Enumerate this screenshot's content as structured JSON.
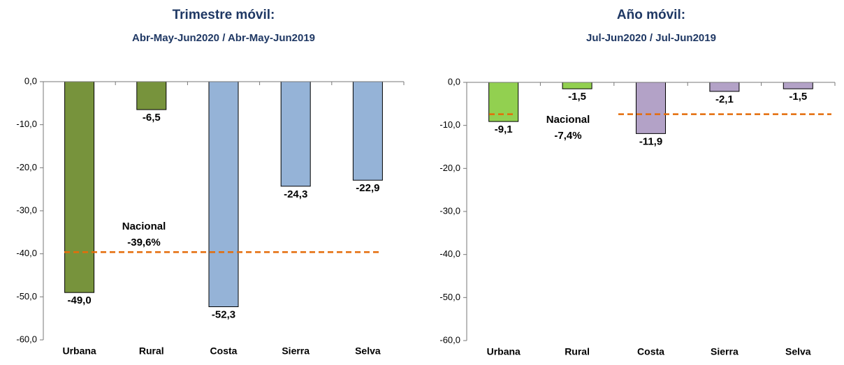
{
  "chart_data": [
    {
      "type": "bar",
      "title": "Trimestre móvil:",
      "subtitle": "Abr-May-Jun2020 /  Abr-May-Jun2019",
      "categories": [
        "Urbana",
        "Rural",
        "Costa",
        "Sierra",
        "Selva"
      ],
      "values": [
        -49.0,
        -6.5,
        -52.3,
        -24.3,
        -22.9
      ],
      "value_labels": [
        "-49,0",
        "-6,5",
        "-52,3",
        "-24,3",
        "-22,9"
      ],
      "colors": [
        "#77933c",
        "#77933c",
        "#95b3d7",
        "#95b3d7",
        "#95b3d7"
      ],
      "ylim": [
        0,
        -60
      ],
      "yticks": [
        {
          "value": 0,
          "label": "0,0"
        },
        {
          "value": -10,
          "label": "-10,0"
        },
        {
          "value": -20,
          "label": "-20,0"
        },
        {
          "value": -30,
          "label": "-30,0"
        },
        {
          "value": -40,
          "label": "-40,0"
        },
        {
          "value": -50,
          "label": "-50,0"
        },
        {
          "value": -60,
          "label": "-60,0"
        }
      ],
      "reference_line": {
        "name": "Nacional",
        "value": -39.6,
        "label": "-39,6%",
        "color": "#e46c0a"
      }
    },
    {
      "type": "bar",
      "title": "Año móvil:",
      "subtitle": "Jul-Jun2020 / Jul-Jun2019",
      "categories": [
        "Urbana",
        "Rural",
        "Costa",
        "Sierra",
        "Selva"
      ],
      "values": [
        -9.1,
        -1.5,
        -11.9,
        -2.1,
        -1.5
      ],
      "value_labels": [
        "-9,1",
        "-1,5",
        "-11,9",
        "-2,1",
        "-1,5"
      ],
      "colors": [
        "#92d050",
        "#92d050",
        "#b3a2c7",
        "#b3a2c7",
        "#b3a2c7"
      ],
      "ylim": [
        0,
        -60
      ],
      "yticks": [
        {
          "value": 0,
          "label": "0,0"
        },
        {
          "value": -10,
          "label": "-10,0"
        },
        {
          "value": -20,
          "label": "-20,0"
        },
        {
          "value": -30,
          "label": "-30,0"
        },
        {
          "value": -40,
          "label": "-40,0"
        },
        {
          "value": -50,
          "label": "-50,0"
        },
        {
          "value": -60,
          "label": "-60,0"
        }
      ],
      "reference_line": {
        "name": "Nacional",
        "value": -7.4,
        "label": "-7,4%",
        "color": "#e46c0a"
      }
    }
  ]
}
